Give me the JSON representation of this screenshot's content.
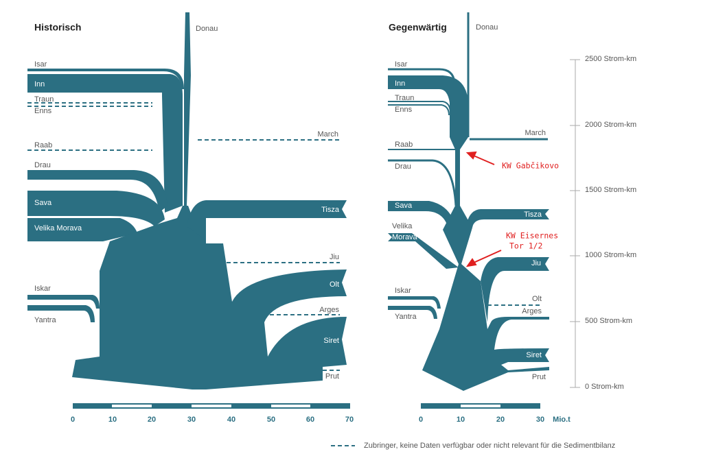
{
  "historic": {
    "title": "Historisch",
    "rivers": [
      "Donau",
      "Isar",
      "Inn",
      "Traun",
      "Enns",
      "Raab",
      "March",
      "Drau",
      "Sava",
      "Tisza",
      "Velika Morava",
      "Jiu",
      "Iskar",
      "Olt",
      "Arges",
      "Yantra",
      "Siret",
      "Prut"
    ],
    "scale_ticks": [
      "0",
      "10",
      "20",
      "30",
      "40",
      "50",
      "60",
      "70"
    ]
  },
  "current": {
    "title": "Gegenwärtig",
    "rivers": [
      "Donau",
      "Isar",
      "Inn",
      "Traun",
      "Enns",
      "March",
      "Raab",
      "Drau",
      "Sava",
      "Tisza",
      "Velika",
      "Morava",
      "Jiu",
      "Iskar",
      "Olt",
      "Yantra",
      "Arges",
      "Siret",
      "Prut"
    ],
    "scale_ticks": [
      "0",
      "10",
      "20",
      "30"
    ],
    "unit": "Mio.t",
    "annotations": [
      "KW Gabčikovo",
      "KW Eisernes",
      "Tor 1/2"
    ]
  },
  "km_axis": [
    "2500 Strom-km",
    "2000 Strom-km",
    "1500 Strom-km",
    "1000 Strom-km",
    "500 Strom-km",
    "0 Strom-km"
  ],
  "legend": "Zubringer, keine Daten verfügbar oder nicht relevant für die Sedimentbilanz"
}
